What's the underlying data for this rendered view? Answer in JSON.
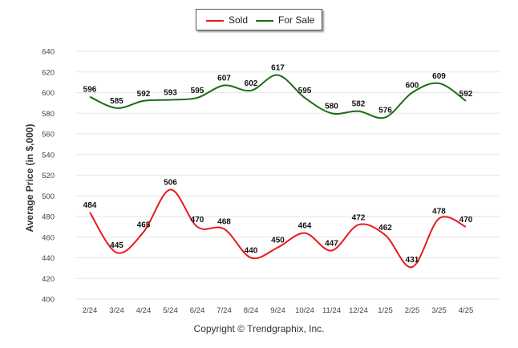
{
  "legend": {
    "sold_label": "Sold",
    "for_sale_label": "For Sale"
  },
  "footer": {
    "copyright": "Copyright © Trendgraphix, Inc."
  },
  "colors": {
    "sold": "#e8191f",
    "for_sale": "#1e6b16",
    "grid": "#e6e6e6"
  },
  "chart_data": {
    "type": "line",
    "title": "",
    "xlabel": "",
    "ylabel": "Average Price (in $,000)",
    "categories": [
      "2/24",
      "3/24",
      "4/24",
      "5/24",
      "6/24",
      "7/24",
      "8/24",
      "9/24",
      "10/24",
      "11/24",
      "12/24",
      "1/25",
      "2/25",
      "3/25",
      "4/25"
    ],
    "ylim": [
      400,
      640
    ],
    "yticks": [
      400,
      420,
      440,
      460,
      480,
      500,
      520,
      540,
      560,
      580,
      600,
      620,
      640
    ],
    "grid": true,
    "legend_position": "top-center",
    "series": [
      {
        "name": "Sold",
        "color": "#e8191f",
        "values": [
          484,
          445,
          465,
          506,
          470,
          468,
          440,
          450,
          464,
          447,
          472,
          462,
          431,
          478,
          470
        ]
      },
      {
        "name": "For Sale",
        "color": "#1e6b16",
        "values": [
          596,
          585,
          592,
          593,
          595,
          607,
          602,
          617,
          595,
          580,
          582,
          576,
          600,
          609,
          592
        ]
      }
    ]
  }
}
